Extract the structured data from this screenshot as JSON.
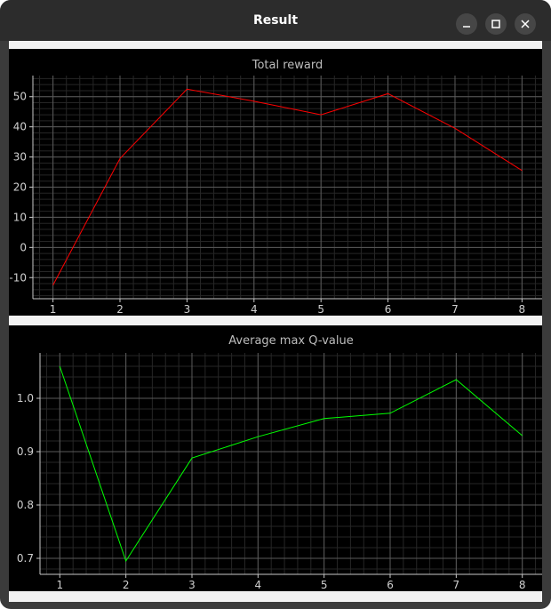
{
  "window": {
    "title": "Result",
    "minimize_icon": "minimize-icon",
    "maximize_icon": "maximize-icon",
    "close_icon": "close-icon"
  },
  "chart_data": [
    {
      "type": "line",
      "title": "Total reward",
      "xlabel": "",
      "ylabel": "",
      "x": [
        1,
        2,
        3,
        4,
        5,
        6,
        7,
        8
      ],
      "series": [
        {
          "values": [
            -12.5,
            29.5,
            52.5,
            48.5,
            44.0,
            51.0,
            39.5,
            25.5
          ],
          "color": "#ff0000"
        }
      ],
      "xlim": [
        0.7,
        8.3
      ],
      "ylim": [
        -17,
        57
      ],
      "xticks": [
        1,
        2,
        3,
        4,
        5,
        6,
        7,
        8
      ],
      "yticks": [
        -10,
        0,
        10,
        20,
        30,
        40,
        50
      ],
      "grid": true,
      "legend": "none"
    },
    {
      "type": "line",
      "title": "Average max Q-value",
      "xlabel": "",
      "ylabel": "",
      "x": [
        1,
        2,
        3,
        4,
        5,
        6,
        7,
        8
      ],
      "series": [
        {
          "values": [
            1.06,
            0.695,
            0.888,
            0.928,
            0.962,
            0.972,
            1.035,
            0.93
          ],
          "color": "#00ff00"
        }
      ],
      "xlim": [
        0.7,
        8.3
      ],
      "ylim": [
        0.67,
        1.085
      ],
      "xticks": [
        1,
        2,
        3,
        4,
        5,
        6,
        7,
        8
      ],
      "yticks": [
        0.7,
        0.8,
        0.9,
        1.0
      ],
      "ytick_labels": [
        "0.7",
        "0.8",
        "0.9",
        "1.0"
      ],
      "grid": true,
      "legend": "none"
    }
  ]
}
